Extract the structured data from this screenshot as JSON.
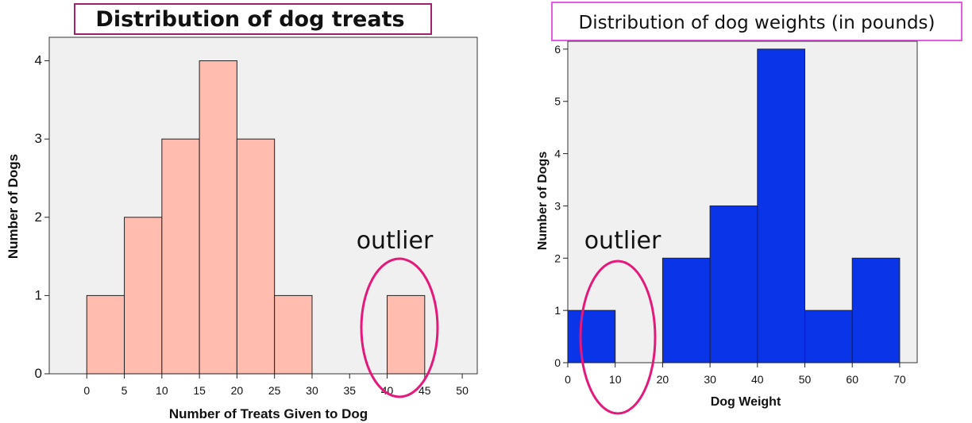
{
  "chart_data": [
    {
      "type": "bar",
      "title": "Distribution of dog treats",
      "xlabel": "Number of Treats Given to Dog",
      "ylabel": "Number of Dogs",
      "xlim": [
        -5,
        52
      ],
      "ylim": [
        0,
        4.3
      ],
      "x_ticks": [
        0,
        5,
        10,
        15,
        20,
        25,
        30,
        35,
        40,
        45,
        50
      ],
      "y_ticks": [
        0,
        1,
        2,
        3,
        4
      ],
      "bins": [
        {
          "start": 0,
          "end": 5,
          "count": 1
        },
        {
          "start": 5,
          "end": 10,
          "count": 2
        },
        {
          "start": 10,
          "end": 15,
          "count": 3
        },
        {
          "start": 15,
          "end": 20,
          "count": 4
        },
        {
          "start": 20,
          "end": 25,
          "count": 3
        },
        {
          "start": 25,
          "end": 30,
          "count": 1
        },
        {
          "start": 40,
          "end": 45,
          "count": 1
        }
      ],
      "bar_color": "#ffbcaf",
      "plot_background": "#f0f0f0",
      "title_border_color": "#a0226e",
      "annotation": {
        "label": "outlier",
        "bin_start": 40,
        "color": "#e5197b"
      }
    },
    {
      "type": "bar",
      "title": "Distribution of dog weights (in pounds)",
      "xlabel": "Dog Weight",
      "ylabel": "Number of Dogs",
      "xlim": [
        0,
        73.7
      ],
      "ylim": [
        0,
        6.15
      ],
      "x_ticks": [
        0,
        10,
        20,
        30,
        40,
        50,
        60,
        70
      ],
      "y_ticks": [
        0,
        1,
        2,
        3,
        4,
        5,
        6
      ],
      "bins": [
        {
          "start": 0,
          "end": 10,
          "count": 1
        },
        {
          "start": 20,
          "end": 30,
          "count": 2
        },
        {
          "start": 30,
          "end": 40,
          "count": 3
        },
        {
          "start": 40,
          "end": 50,
          "count": 6
        },
        {
          "start": 50,
          "end": 60,
          "count": 1
        },
        {
          "start": 60,
          "end": 70,
          "count": 2
        }
      ],
      "bar_color": "#0a34e8",
      "plot_background": "#f0f0f0",
      "title_border_color": "#e45ce2",
      "annotation": {
        "label": "outlier",
        "bin_start": 0,
        "color": "#e5197b"
      }
    }
  ]
}
